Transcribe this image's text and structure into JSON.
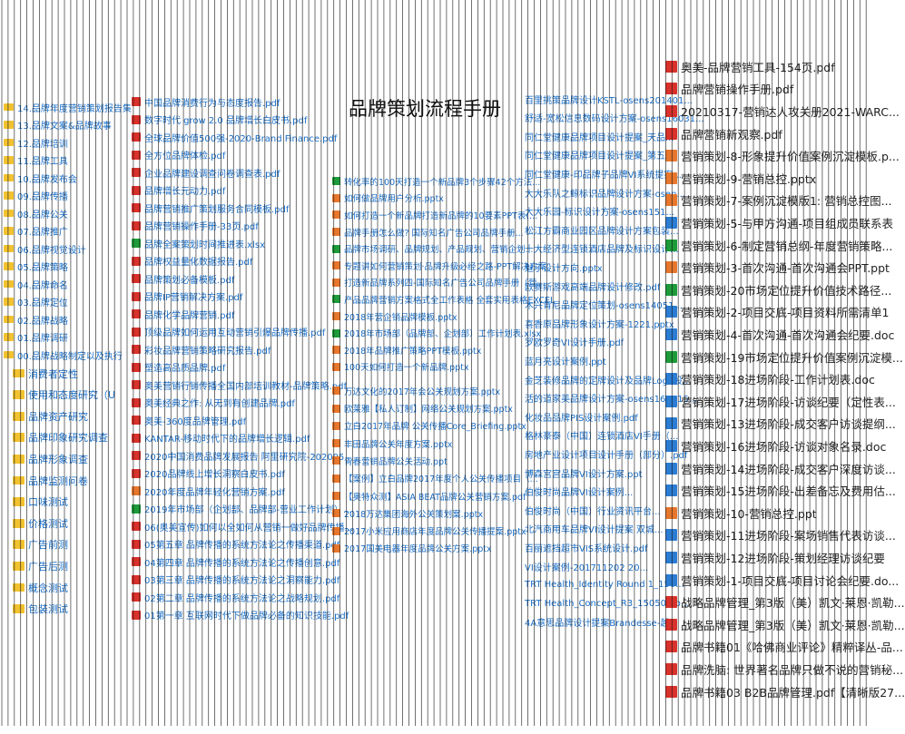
{
  "title": "品牌策划流程手册",
  "folders": [
    "14.品牌年度营销策划报告集",
    "13.品牌文案&品牌故事",
    "12.品牌培训",
    "11.品牌工具",
    "10.品牌发布会",
    "09.品牌传播",
    "08.品牌公关",
    "07.品牌推广",
    "06.品牌视觉设计",
    "05.品牌策略",
    "04.品牌命名",
    "03.品牌定位",
    "02.品牌战略",
    "01.品牌调研",
    "00.品牌战略制定以及执行"
  ],
  "subfolders": [
    "消费者定性",
    "使用和态度研究（U",
    "品牌资产研究",
    "品牌印象研究调查",
    "品牌形象调查",
    "品牌监测问卷",
    "口味测试",
    "价格测试",
    "广告前测",
    "广告后测",
    "概念测试",
    "包装测试"
  ],
  "file_lists": [
    [
      {
        "name": "中国品牌消费行为与态度报告.pdf",
        "icon": "pdf"
      },
      {
        "name": "数字时代 grow 2.0 品牌增长白皮书.pdf",
        "icon": "pdf"
      },
      {
        "name": "全球品牌价值500强-2020-Brand Finance.pdf",
        "icon": "pdf"
      },
      {
        "name": "全方位品牌体检.pdf",
        "icon": "pdf"
      },
      {
        "name": "企业品牌建设调查问卷调查表.pdf",
        "icon": "pdf"
      },
      {
        "name": "品牌增长元动力.pdf",
        "icon": "pdf"
      },
      {
        "name": "品牌营销推广策划服务合同模板.pdf",
        "icon": "pdf"
      },
      {
        "name": "品牌营销操作手册-33页.pdf",
        "icon": "pdf"
      },
      {
        "name": "品牌全案策划时间推进表.xlsx",
        "icon": "xlsx"
      },
      {
        "name": "品牌权益量化数据报告.pdf",
        "icon": "pdf"
      },
      {
        "name": "品牌策划必备模板.pdf",
        "icon": "pdf"
      },
      {
        "name": "品牌IP营销解决方案.pdf",
        "icon": "pdf"
      },
      {
        "name": "品牌化学品牌营销.pdf",
        "icon": "pdf"
      },
      {
        "name": "顶级品牌如何运用互动营销引爆品牌传播.pdf",
        "icon": "pdf"
      },
      {
        "name": "彩妆品牌营销策略研究报告.pdf",
        "icon": "pdf"
      },
      {
        "name": "塑造高品质品牌.pdf",
        "icon": "pdf"
      },
      {
        "name": "奥美营销行销传播全国内部培训教材-品牌策略.pdf",
        "icon": "pdf"
      },
      {
        "name": "奥美经典之作: 从无到有创建品牌.pdf",
        "icon": "pdf"
      },
      {
        "name": "奥美-360度品牌管理.pdf",
        "icon": "pdf"
      },
      {
        "name": "KANTAR-移动时代下的品牌增长逻辑.pdf",
        "icon": "pdf"
      },
      {
        "name": "2020中国消费品牌发展报告 阿里研究院-202005...",
        "icon": "pdf"
      },
      {
        "name": "2020品牌线上增长洞察白皮书.pdf",
        "icon": "pdf"
      },
      {
        "name": "2020年度品牌年轻化营销方案.pdf",
        "icon": "pptx"
      },
      {
        "name": "2019年市场部（企划部、品牌部-营业工作计划）...",
        "icon": "xlsx"
      },
      {
        "name": "06(奥美宣传)如何以全如何从营销一做好品牌传播...",
        "icon": "pdf"
      },
      {
        "name": "05第五章 品牌传播的系统方法论之传播渠道.pdf",
        "icon": "pdf"
      },
      {
        "name": "04第四章 品牌传播的系统方法论之传播创意.pdf",
        "icon": "pdf"
      },
      {
        "name": "03第三章 品牌传播的系统方法论之洞察能力.pdf",
        "icon": "pdf"
      },
      {
        "name": "02第二章 品牌传播的系统方法论之战略规划.pdf",
        "icon": "pdf"
      },
      {
        "name": "01第一章 互联网时代下做品牌必备的知识技能.pdf",
        "icon": "pdf"
      }
    ],
    [
      {
        "name": "转化率的100天打造一个新品牌3个步骤42个方法...",
        "icon": "xlsx"
      },
      {
        "name": "如何做品牌用户分析.pptx",
        "icon": "pptx"
      },
      {
        "name": "如何打造一个新品牌打造新品牌的10要素PPT表(...",
        "icon": "pptx"
      },
      {
        "name": "品牌手册怎么做? 国际知名广告公司品牌手册...",
        "icon": "pptx"
      },
      {
        "name": "品牌市场调研、品牌规划、产品规划、营销企划...",
        "icon": "xlsx"
      },
      {
        "name": "专题讲如何营销策划·品牌升级必经之路-PPT解决方案",
        "icon": "pptx"
      },
      {
        "name": "打造新品牌系列四-国际知名广告公司品牌手册（营...",
        "icon": "pptx"
      },
      {
        "name": "产品品牌营销方案格式全工作表格 全套实用表格EXCEL",
        "icon": "xlsx"
      },
      {
        "name": "2018年营企销品牌模板.pptx",
        "icon": "pptx"
      },
      {
        "name": "2018年市场部（品牌部、企划部）工作计划表.xlsx",
        "icon": "xlsx"
      },
      {
        "name": "2018年品牌推广策略PPT模板.pptx",
        "icon": "pptx"
      },
      {
        "name": "100天如何打造一个新品牌.pptx",
        "icon": "pptx"
      }
    ],
    [
      {
        "name": "万达文化的2017年会公关规划方案.pptx",
        "icon": "pptx"
      },
      {
        "name": "欧莱雅【私人订制】网络公关规划方案.pptx",
        "icon": "pptx"
      },
      {
        "name": "立白2017年品牌 公关传播Core_Briefing.pptx",
        "icon": "pptx"
      },
      {
        "name": "丰田品牌公关年度方案.pptx",
        "icon": "pptx"
      },
      {
        "name": "青春营销品牌公关活动.ppt",
        "icon": "pptx"
      },
      {
        "name": "【案例】立白品牌2017年度个人公关传播项目（...",
        "icon": "pptx"
      },
      {
        "name": "【奥特众测】ASIA BEAT品牌公关营销方案.pdf",
        "icon": "pptx"
      },
      {
        "name": "2018万达集团海外公关策划案.pptx",
        "icon": "pptx"
      },
      {
        "name": "2017小米应用商店年度品牌公关传播提案.pptx",
        "icon": "pptx"
      },
      {
        "name": "2017国美电器年度品牌公关方案.pptx",
        "icon": "pptx"
      }
    ],
    [
      {
        "name": "百里挑策品牌设计KSTL-osens201401..."
      },
      {
        "name": "舒适-宽松信息数码设计方案-osens16031..."
      },
      {
        "name": "同仁堂健康品牌项目设计提案_天品..."
      },
      {
        "name": "同仁堂健康品牌项目设计提案_第五..."
      },
      {
        "name": "同仁堂健康-印品牌子品牌VI系统提案..."
      },
      {
        "name": "大大乐队之鲸标识品牌设计方案-osen..."
      },
      {
        "name": "大大乐园-标识设计方案-osens151..."
      },
      {
        "name": "松江方霸商业园区品牌设计方案包装..."
      },
      {
        "name": "十大经济型连锁酒店品牌及标识设计..."
      },
      {
        "name": "魅子设计方向.pptx"
      },
      {
        "name": "欧赛斯游戏高端品牌设计修改.pdf"
      },
      {
        "name": "木兴肯尼品牌定位策划-osens14051..."
      },
      {
        "name": "喜香原品牌形象设计方案-1221.pptx"
      },
      {
        "name": "罗欧罗奇VI设计手册.pdf"
      },
      {
        "name": "蓝月亮设计案例.ppt"
      },
      {
        "name": "金芝装修品牌的定牌设计及品牌Logo设..."
      },
      {
        "name": "活的道家美品牌设计方案-osens160315..."
      },
      {
        "name": "化妆品品牌PIS设计案例.pdf"
      },
      {
        "name": "格林豪泰（中国）连锁酒店VI手册（..."
      },
      {
        "name": "房地产业设计项目设计手册（部分）.pdf"
      },
      {
        "name": "博森宫宫品牌VI设计方案.ppt"
      },
      {
        "name": "伯俊时尚品牌VI设计案例..."
      },
      {
        "name": "伯俊时尚（中国）行业资讯平台..."
      },
      {
        "name": "北汽商用车品牌VI设计提案 双城..."
      },
      {
        "name": "百丽遮挡超市VIS系统设计.pdf"
      },
      {
        "name": "VI设计案例-201711202 20..."
      },
      {
        "name": "TRT Health_Identity Round 1_150..."
      },
      {
        "name": "TRT Health_Concept_R3_150507.p..."
      },
      {
        "name": "4A意思品牌设计提案Brandesse-越..."
      }
    ],
    [
      {
        "name": "奥美-品牌营销工具-154页.pdf",
        "icon": "pdf"
      },
      {
        "name": "品牌营销操作手册.pdf",
        "icon": "pdf"
      },
      {
        "name": "20210317-营销达人攻关册2021-WARC...",
        "icon": "pdf"
      },
      {
        "name": "品牌营销新观察.pdf",
        "icon": "pdf"
      },
      {
        "name": "营销策划-8-形象提升价值案例沉淀模板.p...",
        "icon": "pptx"
      },
      {
        "name": "营销策划-9-营销总控.pptx",
        "icon": "pptx"
      },
      {
        "name": "营销策划-7-案例沉淀模版1: 营销总控图...",
        "icon": "pptx"
      },
      {
        "name": "营销策划-5-与甲方沟通-项目组成员联系表",
        "icon": "docx"
      },
      {
        "name": "营销策划-6-制定营销总纲-年度营销策略...",
        "icon": "xlsx"
      },
      {
        "name": "营销策划-3-首次沟通-首次沟通会PPT.ppt",
        "icon": "pptx"
      },
      {
        "name": "营销策划-20市场定位提升价值技术路径...",
        "icon": "xlsx"
      },
      {
        "name": "营销策划-2-项目交底-项目资料所需清单1",
        "icon": "docx"
      },
      {
        "name": "营销策划-4-首次沟通-首次沟通会纪要.doc",
        "icon": "docx"
      },
      {
        "name": "营销策划-19市场定位提升价值案例沉淀模...",
        "icon": "xlsx"
      },
      {
        "name": "营销策划-18进场阶段-工作计划表.doc",
        "icon": "docx"
      },
      {
        "name": "营销策划-17进场阶段-访谈纪要（定性表...",
        "icon": "docx"
      },
      {
        "name": "营销策划-13进场阶段-成交客户访谈提纲...",
        "icon": "docx"
      },
      {
        "name": "营销策划-16进场阶段-访谈对象名录.doc",
        "icon": "docx"
      },
      {
        "name": "营销策划-14进场阶段-成交客户深度访谈...",
        "icon": "docx"
      },
      {
        "name": "营销策划-15进场阶段-出差备忘及费用估...",
        "icon": "docx"
      },
      {
        "name": "营销策划-10-营销总控.ppt",
        "icon": "pptx"
      },
      {
        "name": "营销策划-11进场阶段-案场销售代表访谈...",
        "icon": "docx"
      },
      {
        "name": "营销策划-12进场阶段-策划经理访谈纪要",
        "icon": "docx"
      },
      {
        "name": "营销策划-1-项目交底-项目讨论会纪要.do...",
        "icon": "docx"
      },
      {
        "name": "战略品牌管理_第3版（美）凯文·莱恩·凯勒...",
        "icon": "pdf"
      },
      {
        "name": "战略品牌管理_第3版（美）凯文·莱恩·凯勒...",
        "icon": "pdf"
      },
      {
        "name": "品牌书籍01《哈佛商业评论》精粹译丛-品...",
        "icon": "pdf"
      },
      {
        "name": "品牌洗脑: 世界著名品牌只做不说的营销秘...",
        "icon": "pdf"
      },
      {
        "name": "品牌书籍03 B2B品牌管理.pdf【清晰版27...",
        "icon": "pdf"
      }
    ]
  ]
}
